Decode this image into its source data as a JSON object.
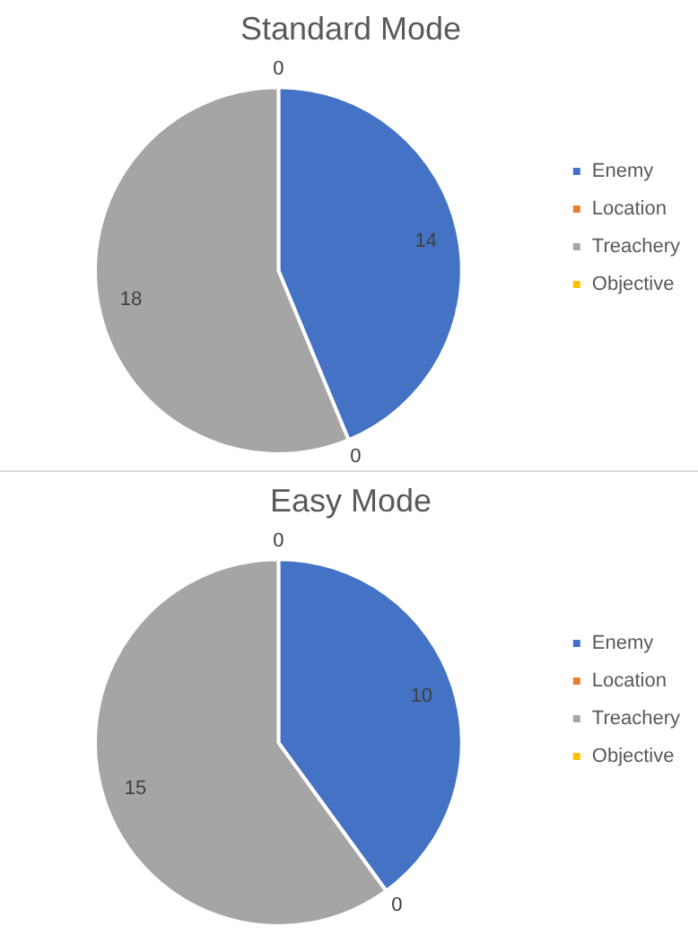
{
  "chart_data": [
    {
      "type": "pie",
      "title": "Standard Mode",
      "categories": [
        "Enemy",
        "Location",
        "Treachery",
        "Objective"
      ],
      "values": [
        14,
        0,
        18,
        0
      ],
      "value_labels": [
        "14",
        "0",
        "18",
        "0"
      ],
      "colors": [
        "#4472c4",
        "#ed7d31",
        "#a5a5a5",
        "#ffc000"
      ],
      "legend": "right"
    },
    {
      "type": "pie",
      "title": "Easy Mode",
      "categories": [
        "Enemy",
        "Location",
        "Treachery",
        "Objective"
      ],
      "values": [
        10,
        0,
        15,
        0
      ],
      "value_labels": [
        "10",
        "0",
        "15",
        "0"
      ],
      "colors": [
        "#4472c4",
        "#ed7d31",
        "#a5a5a5",
        "#ffc000"
      ],
      "legend": "right"
    }
  ]
}
